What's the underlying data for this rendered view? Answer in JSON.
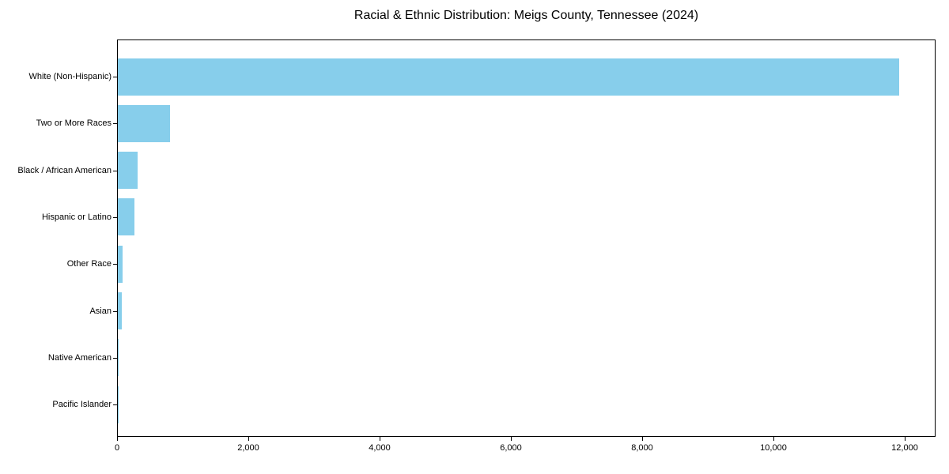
{
  "figure": {
    "background": "#ffffff"
  },
  "chart_data": {
    "type": "bar",
    "orientation": "horizontal",
    "title": "Racial & Ethnic Distribution: Meigs County, Tennessee (2024)",
    "categories": [
      "White (Non-Hispanic)",
      "Two or More Races",
      "Black / African American",
      "Hispanic or Latino",
      "Other Race",
      "Asian",
      "Native American",
      "Pacific Islander"
    ],
    "values": [
      11900,
      800,
      300,
      250,
      75,
      65,
      10,
      4
    ],
    "bar_color": "#87CEEB",
    "xlabel": "",
    "ylabel": "",
    "xlim": [
      0,
      12470
    ],
    "x_ticks": [
      0,
      2000,
      4000,
      6000,
      8000,
      10000,
      12000
    ],
    "x_tick_labels": [
      "0",
      "2,000",
      "4,000",
      "6,000",
      "8,000",
      "10,000",
      "12,000"
    ],
    "grid": false,
    "legend": false
  }
}
